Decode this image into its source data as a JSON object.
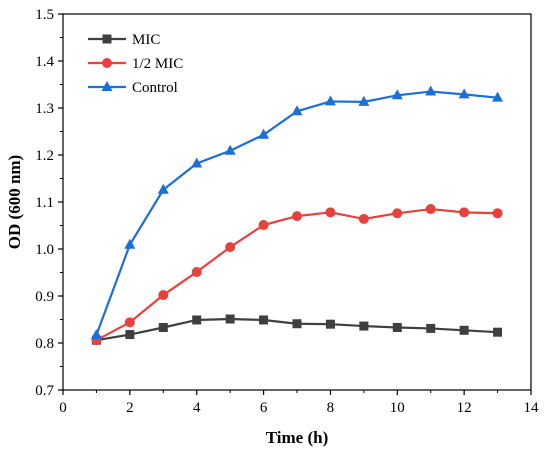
{
  "chart_data": {
    "type": "line",
    "title": "",
    "xlabel": "Time (h)",
    "ylabel": "OD (600 nm)",
    "xlim": [
      0,
      14
    ],
    "ylim": [
      0.7,
      1.5
    ],
    "xticks": [
      0,
      2,
      4,
      6,
      8,
      10,
      12,
      14
    ],
    "yticks": [
      0.7,
      0.8,
      0.9,
      1.0,
      1.1,
      1.2,
      1.3,
      1.4,
      1.5
    ],
    "ytick_labels": [
      "0.7",
      "0.8",
      "0.9",
      "1.0",
      "1.1",
      "1.2",
      "1.3",
      "1.4",
      "1.5"
    ],
    "grid": false,
    "legend_position": "top-left",
    "x": [
      1,
      2,
      3,
      4,
      5,
      6,
      7,
      8,
      9,
      10,
      11,
      12,
      13
    ],
    "series": [
      {
        "name": "MIC",
        "color": "#3f3f3f",
        "marker": "square",
        "values": [
          0.806,
          0.818,
          0.833,
          0.849,
          0.851,
          0.849,
          0.841,
          0.84,
          0.836,
          0.833,
          0.831,
          0.827,
          0.823
        ]
      },
      {
        "name": "1/2 MIC",
        "color": "#e8413c",
        "marker": "circle",
        "values": [
          0.806,
          0.844,
          0.902,
          0.951,
          1.004,
          1.051,
          1.07,
          1.078,
          1.064,
          1.076,
          1.085,
          1.078,
          1.076
        ]
      },
      {
        "name": "Control",
        "color": "#1c6fd8",
        "marker": "triangle",
        "values": [
          0.817,
          1.009,
          1.126,
          1.182,
          1.209,
          1.243,
          1.293,
          1.314,
          1.313,
          1.327,
          1.335,
          1.329,
          1.322
        ]
      }
    ]
  }
}
